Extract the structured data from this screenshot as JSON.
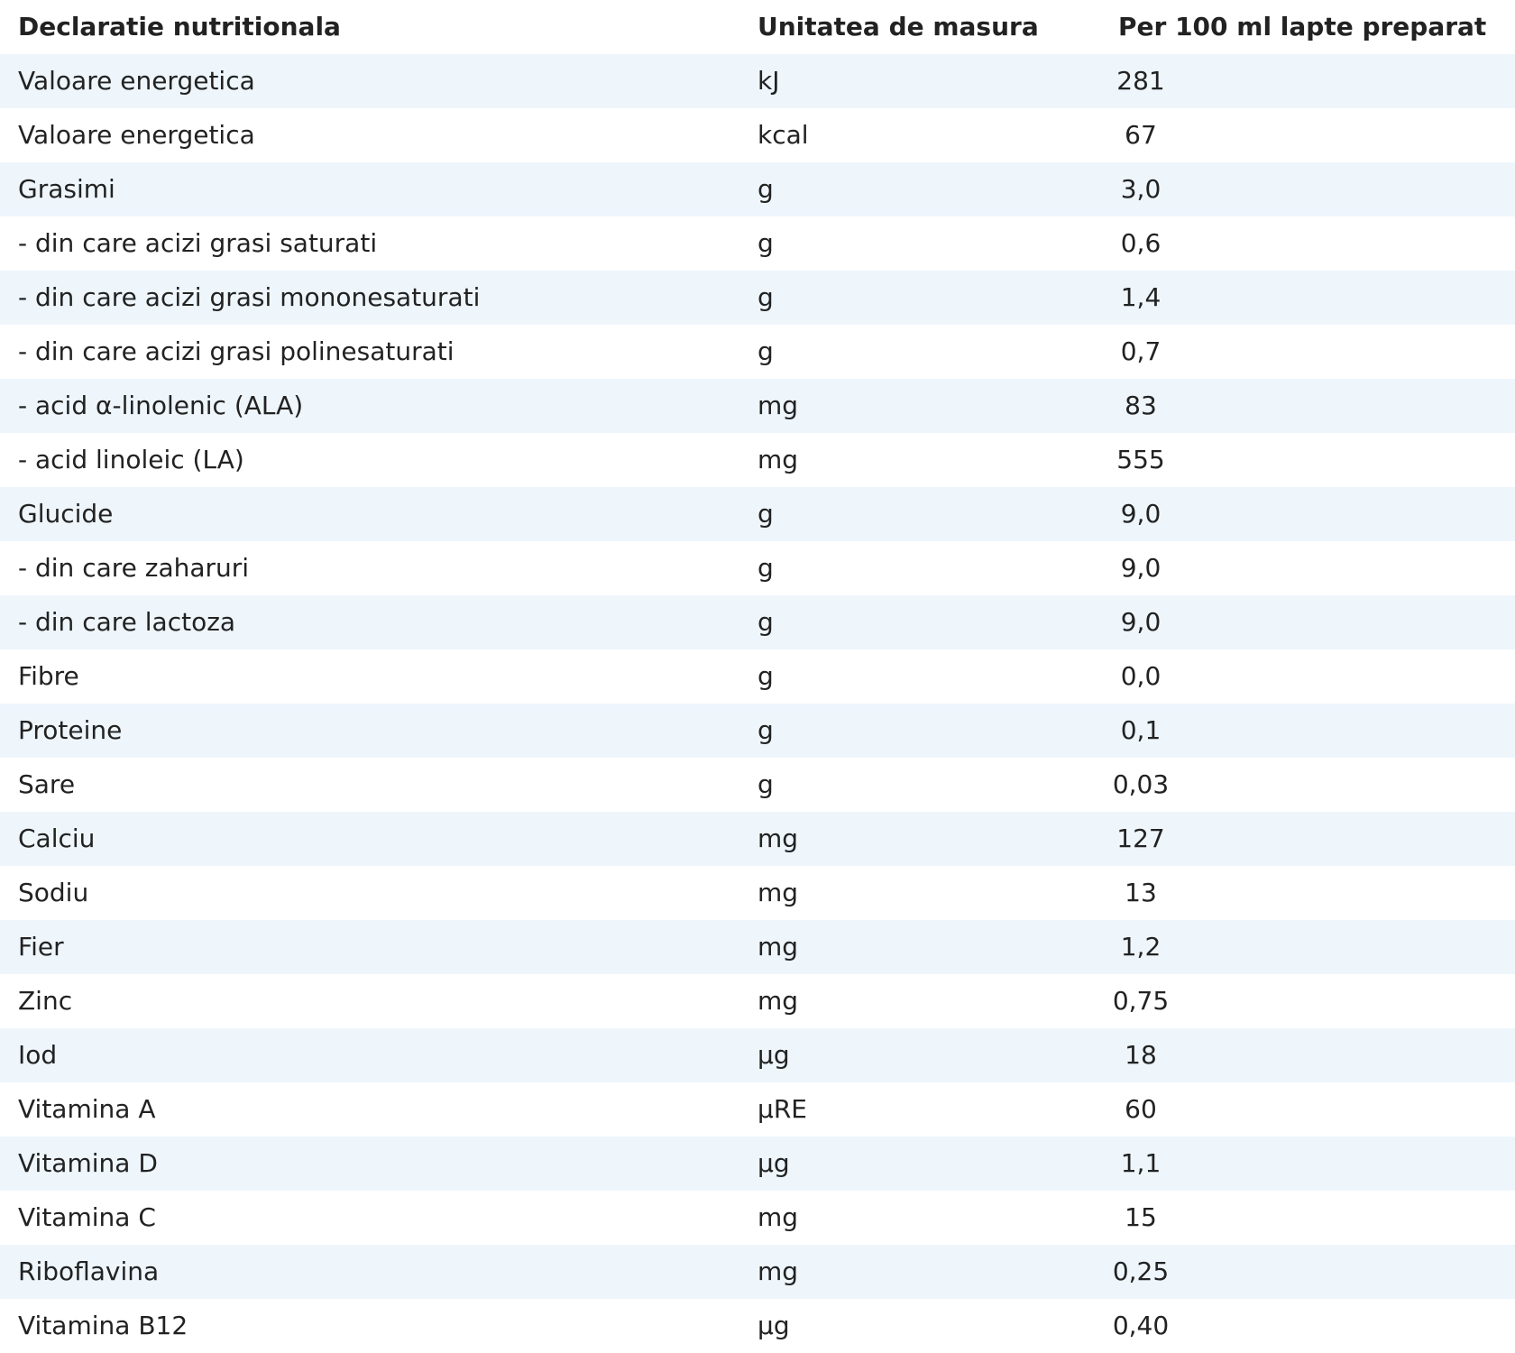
{
  "table": {
    "headers": {
      "name": "Declaratie nutritionala",
      "unit": "Unitatea de masura",
      "value": "Per 100 ml lapte preparat"
    },
    "rows": [
      {
        "name": "Valoare energetica",
        "unit": "kJ",
        "value": "281"
      },
      {
        "name": "Valoare energetica",
        "unit": "kcal",
        "value": "67"
      },
      {
        "name": "Grasimi",
        "unit": "g",
        "value": "3,0"
      },
      {
        "name": "- din care acizi grasi saturati",
        "unit": "g",
        "value": "0,6"
      },
      {
        "name": "- din care acizi grasi mononesaturati",
        "unit": "g",
        "value": "1,4"
      },
      {
        "name": "- din care acizi grasi polinesaturati",
        "unit": "g",
        "value": "0,7"
      },
      {
        "name": "- acid  α-linolenic (ALA)",
        "unit": "mg",
        "value": "83"
      },
      {
        "name": "- acid linoleic (LA)",
        "unit": "mg",
        "value": "555"
      },
      {
        "name": "Glucide",
        "unit": "g",
        "value": "9,0"
      },
      {
        "name": "- din care zaharuri",
        "unit": "g",
        "value": "9,0"
      },
      {
        "name": "- din care lactoza",
        "unit": "g",
        "value": "9,0"
      },
      {
        "name": "Fibre",
        "unit": "g",
        "value": "0,0"
      },
      {
        "name": "Proteine",
        "unit": "g",
        "value": "0,1"
      },
      {
        "name": "Sare",
        "unit": "g",
        "value": "0,03"
      },
      {
        "name": "Calciu",
        "unit": "mg",
        "value": "127"
      },
      {
        "name": "Sodiu",
        "unit": "mg",
        "value": "13"
      },
      {
        "name": "Fier",
        "unit": "mg",
        "value": "1,2"
      },
      {
        "name": "Zinc",
        "unit": "mg",
        "value": "0,75"
      },
      {
        "name": "Iod",
        "unit": "µg",
        "value": "18"
      },
      {
        "name": "Vitamina A",
        "unit": "µRE",
        "value": "60"
      },
      {
        "name": "Vitamina D",
        "unit": "µg",
        "value": "1,1"
      },
      {
        "name": "Vitamina C",
        "unit": "mg",
        "value": "15"
      },
      {
        "name": "Riboflavina",
        "unit": "mg",
        "value": "0,25"
      },
      {
        "name": "Vitamina B12",
        "unit": "µg",
        "value": "0,40"
      }
    ]
  }
}
